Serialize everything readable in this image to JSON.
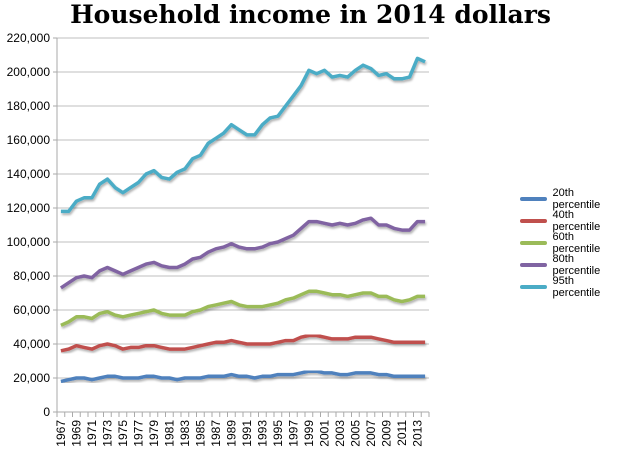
{
  "chart_data": {
    "type": "line",
    "title": "Household income in 2014 dollars",
    "xlabel": "",
    "ylabel": "",
    "ylim": [
      0,
      220000
    ],
    "yticks": [
      0,
      20000,
      40000,
      60000,
      80000,
      100000,
      120000,
      140000,
      160000,
      180000,
      200000,
      220000
    ],
    "ytick_labels": [
      "0",
      "20,000",
      "40,000",
      "60,000",
      "80,000",
      "100,000",
      "120,000",
      "140,000",
      "160,000",
      "180,000",
      "200,000",
      "220,000"
    ],
    "x": [
      1967,
      1968,
      1969,
      1970,
      1971,
      1972,
      1973,
      1974,
      1975,
      1976,
      1977,
      1978,
      1979,
      1980,
      1981,
      1982,
      1983,
      1984,
      1985,
      1986,
      1987,
      1988,
      1989,
      1990,
      1991,
      1992,
      1993,
      1994,
      1995,
      1996,
      1997,
      1998,
      1999,
      2000,
      2001,
      2002,
      2003,
      2004,
      2005,
      2006,
      2007,
      2008,
      2009,
      2010,
      2011,
      2012,
      2013,
      2014
    ],
    "xtick_labels": [
      "1967",
      "1969",
      "1971",
      "1973",
      "1975",
      "1977",
      "1979",
      "1981",
      "1983",
      "1985",
      "1987",
      "1989",
      "1991",
      "1993",
      "1995",
      "1997",
      "1999",
      "2001",
      "2003",
      "2005",
      "2007",
      "2009",
      "2011",
      "2013"
    ],
    "grid": "horizontal",
    "legend": "right",
    "series": [
      {
        "name": "20th percentile",
        "color": "#4F81BD",
        "values": [
          18000,
          19000,
          20000,
          20000,
          19000,
          20000,
          21000,
          21000,
          20000,
          20000,
          20000,
          21000,
          21000,
          20000,
          20000,
          19000,
          20000,
          20000,
          20000,
          21000,
          21000,
          21000,
          22000,
          21000,
          21000,
          20000,
          21000,
          21000,
          22000,
          22000,
          22000,
          23000,
          24000,
          24000,
          23000,
          23000,
          22000,
          22000,
          23000,
          23000,
          23000,
          22000,
          22000,
          21000,
          21000,
          21000,
          21000,
          21000
        ]
      },
      {
        "name": "40th percentile",
        "color": "#C0504D",
        "values": [
          36000,
          37000,
          39000,
          38000,
          37000,
          39000,
          40000,
          39000,
          37000,
          38000,
          38000,
          39000,
          39000,
          38000,
          37000,
          37000,
          37000,
          38000,
          39000,
          40000,
          41000,
          41000,
          42000,
          41000,
          40000,
          40000,
          40000,
          40000,
          41000,
          42000,
          42000,
          44000,
          45000,
          45000,
          44000,
          43000,
          43000,
          43000,
          44000,
          44000,
          44000,
          43000,
          42000,
          41000,
          41000,
          41000,
          41000,
          41000
        ]
      },
      {
        "name": "60th percentile",
        "color": "#9BBB59",
        "values": [
          51000,
          53000,
          56000,
          56000,
          55000,
          58000,
          59000,
          57000,
          56000,
          57000,
          58000,
          59000,
          60000,
          58000,
          57000,
          57000,
          57000,
          59000,
          60000,
          62000,
          63000,
          64000,
          65000,
          63000,
          62000,
          62000,
          62000,
          63000,
          64000,
          66000,
          67000,
          69000,
          71000,
          71000,
          70000,
          69000,
          69000,
          68000,
          69000,
          70000,
          70000,
          68000,
          68000,
          66000,
          65000,
          66000,
          68000,
          68000
        ]
      },
      {
        "name": "80th percentile",
        "color": "#8064A2",
        "values": [
          73000,
          76000,
          79000,
          80000,
          79000,
          83000,
          85000,
          83000,
          81000,
          83000,
          85000,
          87000,
          88000,
          86000,
          85000,
          85000,
          87000,
          90000,
          91000,
          94000,
          96000,
          97000,
          99000,
          97000,
          96000,
          96000,
          97000,
          99000,
          100000,
          102000,
          104000,
          108000,
          112000,
          112000,
          111000,
          110000,
          111000,
          110000,
          111000,
          113000,
          114000,
          110000,
          110000,
          108000,
          107000,
          107000,
          112000,
          112000
        ]
      },
      {
        "name": "95th percentile",
        "color": "#4BACC6",
        "values": [
          118000,
          118000,
          124000,
          126000,
          126000,
          134000,
          137000,
          132000,
          129000,
          132000,
          135000,
          140000,
          142000,
          138000,
          137000,
          141000,
          143000,
          149000,
          151000,
          158000,
          161000,
          164000,
          169000,
          166000,
          163000,
          163000,
          169000,
          173000,
          174000,
          180000,
          186000,
          192000,
          201000,
          199000,
          201000,
          197000,
          198000,
          197000,
          201000,
          204000,
          202000,
          198000,
          199000,
          196000,
          196000,
          197000,
          208000,
          206000
        ]
      }
    ]
  }
}
